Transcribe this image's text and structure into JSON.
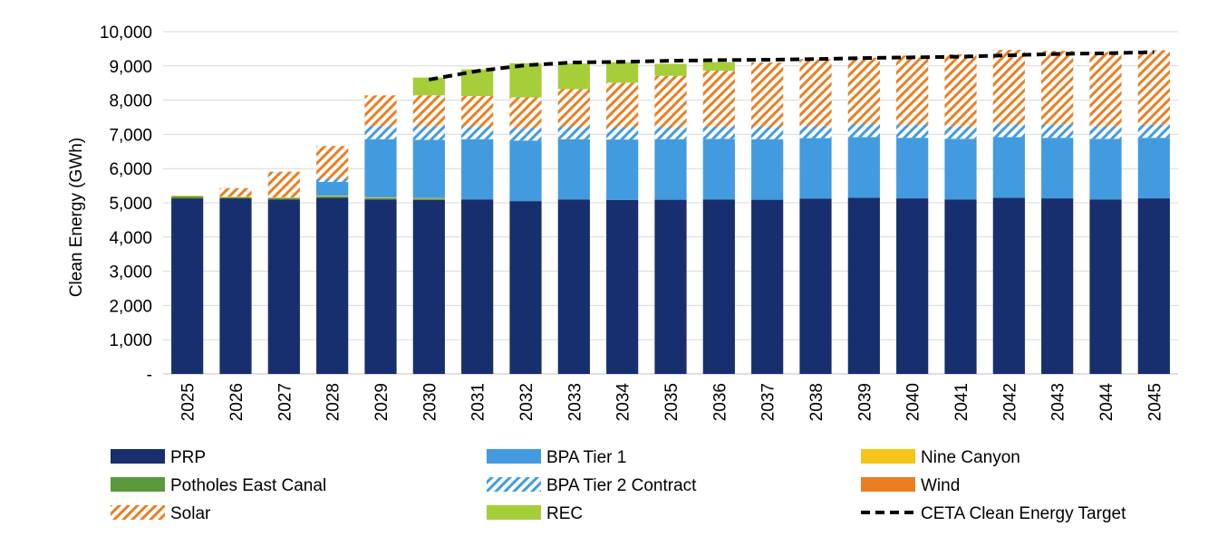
{
  "chart_data": {
    "type": "bar",
    "stacked": true,
    "title": "",
    "xlabel": "",
    "ylabel": "Clean Energy (GWh)",
    "ylim": [
      0,
      10000
    ],
    "yticks": [
      0,
      1000,
      2000,
      3000,
      4000,
      5000,
      6000,
      7000,
      8000,
      9000,
      10000
    ],
    "ytick_labels": [
      "-",
      "1,000",
      "2,000",
      "3,000",
      "4,000",
      "5,000",
      "6,000",
      "7,000",
      "8,000",
      "9,000",
      "10,000"
    ],
    "grid": true,
    "legend_position": "bottom",
    "categories": [
      "2025",
      "2026",
      "2027",
      "2028",
      "2029",
      "2030",
      "2031",
      "2032",
      "2033",
      "2034",
      "2035",
      "2036",
      "2037",
      "2038",
      "2039",
      "2040",
      "2041",
      "2042",
      "2043",
      "2044",
      "2045"
    ],
    "series": [
      {
        "name": "PRP",
        "color": "#172F6E",
        "pattern": "solid",
        "values": [
          5130,
          5130,
          5100,
          5150,
          5100,
          5080,
          5100,
          5050,
          5100,
          5080,
          5090,
          5100,
          5090,
          5120,
          5150,
          5130,
          5100,
          5150,
          5130,
          5100,
          5130
        ]
      },
      {
        "name": "Potholes East Canal",
        "color": "#5A9A3C",
        "pattern": "solid",
        "values": [
          60,
          30,
          40,
          40,
          40,
          40,
          0,
          0,
          0,
          0,
          0,
          0,
          0,
          0,
          0,
          0,
          0,
          0,
          0,
          0,
          0
        ]
      },
      {
        "name": "Nine Canyon",
        "color": "#F5C518",
        "pattern": "solid",
        "values": [
          20,
          20,
          20,
          20,
          20,
          20,
          0,
          0,
          0,
          0,
          0,
          0,
          0,
          0,
          0,
          0,
          0,
          0,
          0,
          0,
          0
        ]
      },
      {
        "name": "BPA Tier 1",
        "color": "#429BDF",
        "pattern": "solid",
        "values": [
          0,
          0,
          0,
          400,
          1700,
          1700,
          1760,
          1770,
          1760,
          1770,
          1770,
          1770,
          1770,
          1770,
          1770,
          1770,
          1770,
          1770,
          1770,
          1770,
          1770
        ]
      },
      {
        "name": "BPA Tier 2 Contract",
        "color": "#429BDF",
        "pattern": "hatch",
        "values": [
          0,
          0,
          0,
          100,
          380,
          400,
          360,
          360,
          360,
          360,
          350,
          360,
          360,
          350,
          380,
          380,
          360,
          380,
          380,
          360,
          380
        ]
      },
      {
        "name": "Wind",
        "color": "#E97E22",
        "pattern": "solid",
        "values": [
          0,
          0,
          0,
          0,
          0,
          0,
          0,
          0,
          0,
          0,
          0,
          0,
          0,
          0,
          0,
          0,
          0,
          0,
          0,
          0,
          0
        ]
      },
      {
        "name": "Solar",
        "color": "#E97E22",
        "pattern": "hatch",
        "values": [
          0,
          250,
          750,
          950,
          900,
          900,
          900,
          900,
          1100,
          1300,
          1500,
          1630,
          1880,
          1960,
          1940,
          2020,
          2110,
          2170,
          2160,
          2170,
          2180
        ]
      },
      {
        "name": "REC",
        "color": "#A5CE39",
        "pattern": "solid",
        "values": [
          0,
          0,
          0,
          0,
          0,
          520,
          780,
          1000,
          750,
          600,
          350,
          250,
          0,
          0,
          0,
          0,
          0,
          0,
          0,
          0,
          0
        ]
      }
    ],
    "target_line": {
      "name": "CETA Clean Energy Target",
      "color": "#000000",
      "style": "dashed",
      "values": [
        null,
        null,
        null,
        null,
        null,
        8600,
        8850,
        9020,
        9100,
        9120,
        9150,
        9170,
        9180,
        9200,
        9230,
        9250,
        9270,
        9310,
        9350,
        9370,
        9400
      ]
    },
    "legend": [
      {
        "name": "PRP",
        "swatch": "solid",
        "color": "#172F6E"
      },
      {
        "name": "BPA Tier 1",
        "swatch": "solid",
        "color": "#429BDF"
      },
      {
        "name": "Nine Canyon",
        "swatch": "solid",
        "color": "#F5C518"
      },
      {
        "name": "Potholes East Canal",
        "swatch": "solid",
        "color": "#5A9A3C"
      },
      {
        "name": "BPA Tier 2 Contract",
        "swatch": "hatch",
        "color": "#429BDF"
      },
      {
        "name": "Wind",
        "swatch": "solid",
        "color": "#E97E22"
      },
      {
        "name": "Solar",
        "swatch": "hatch",
        "color": "#E97E22"
      },
      {
        "name": "REC",
        "swatch": "solid",
        "color": "#A5CE39"
      },
      {
        "name": "CETA Clean Energy Target",
        "swatch": "dashed",
        "color": "#000000"
      }
    ]
  }
}
